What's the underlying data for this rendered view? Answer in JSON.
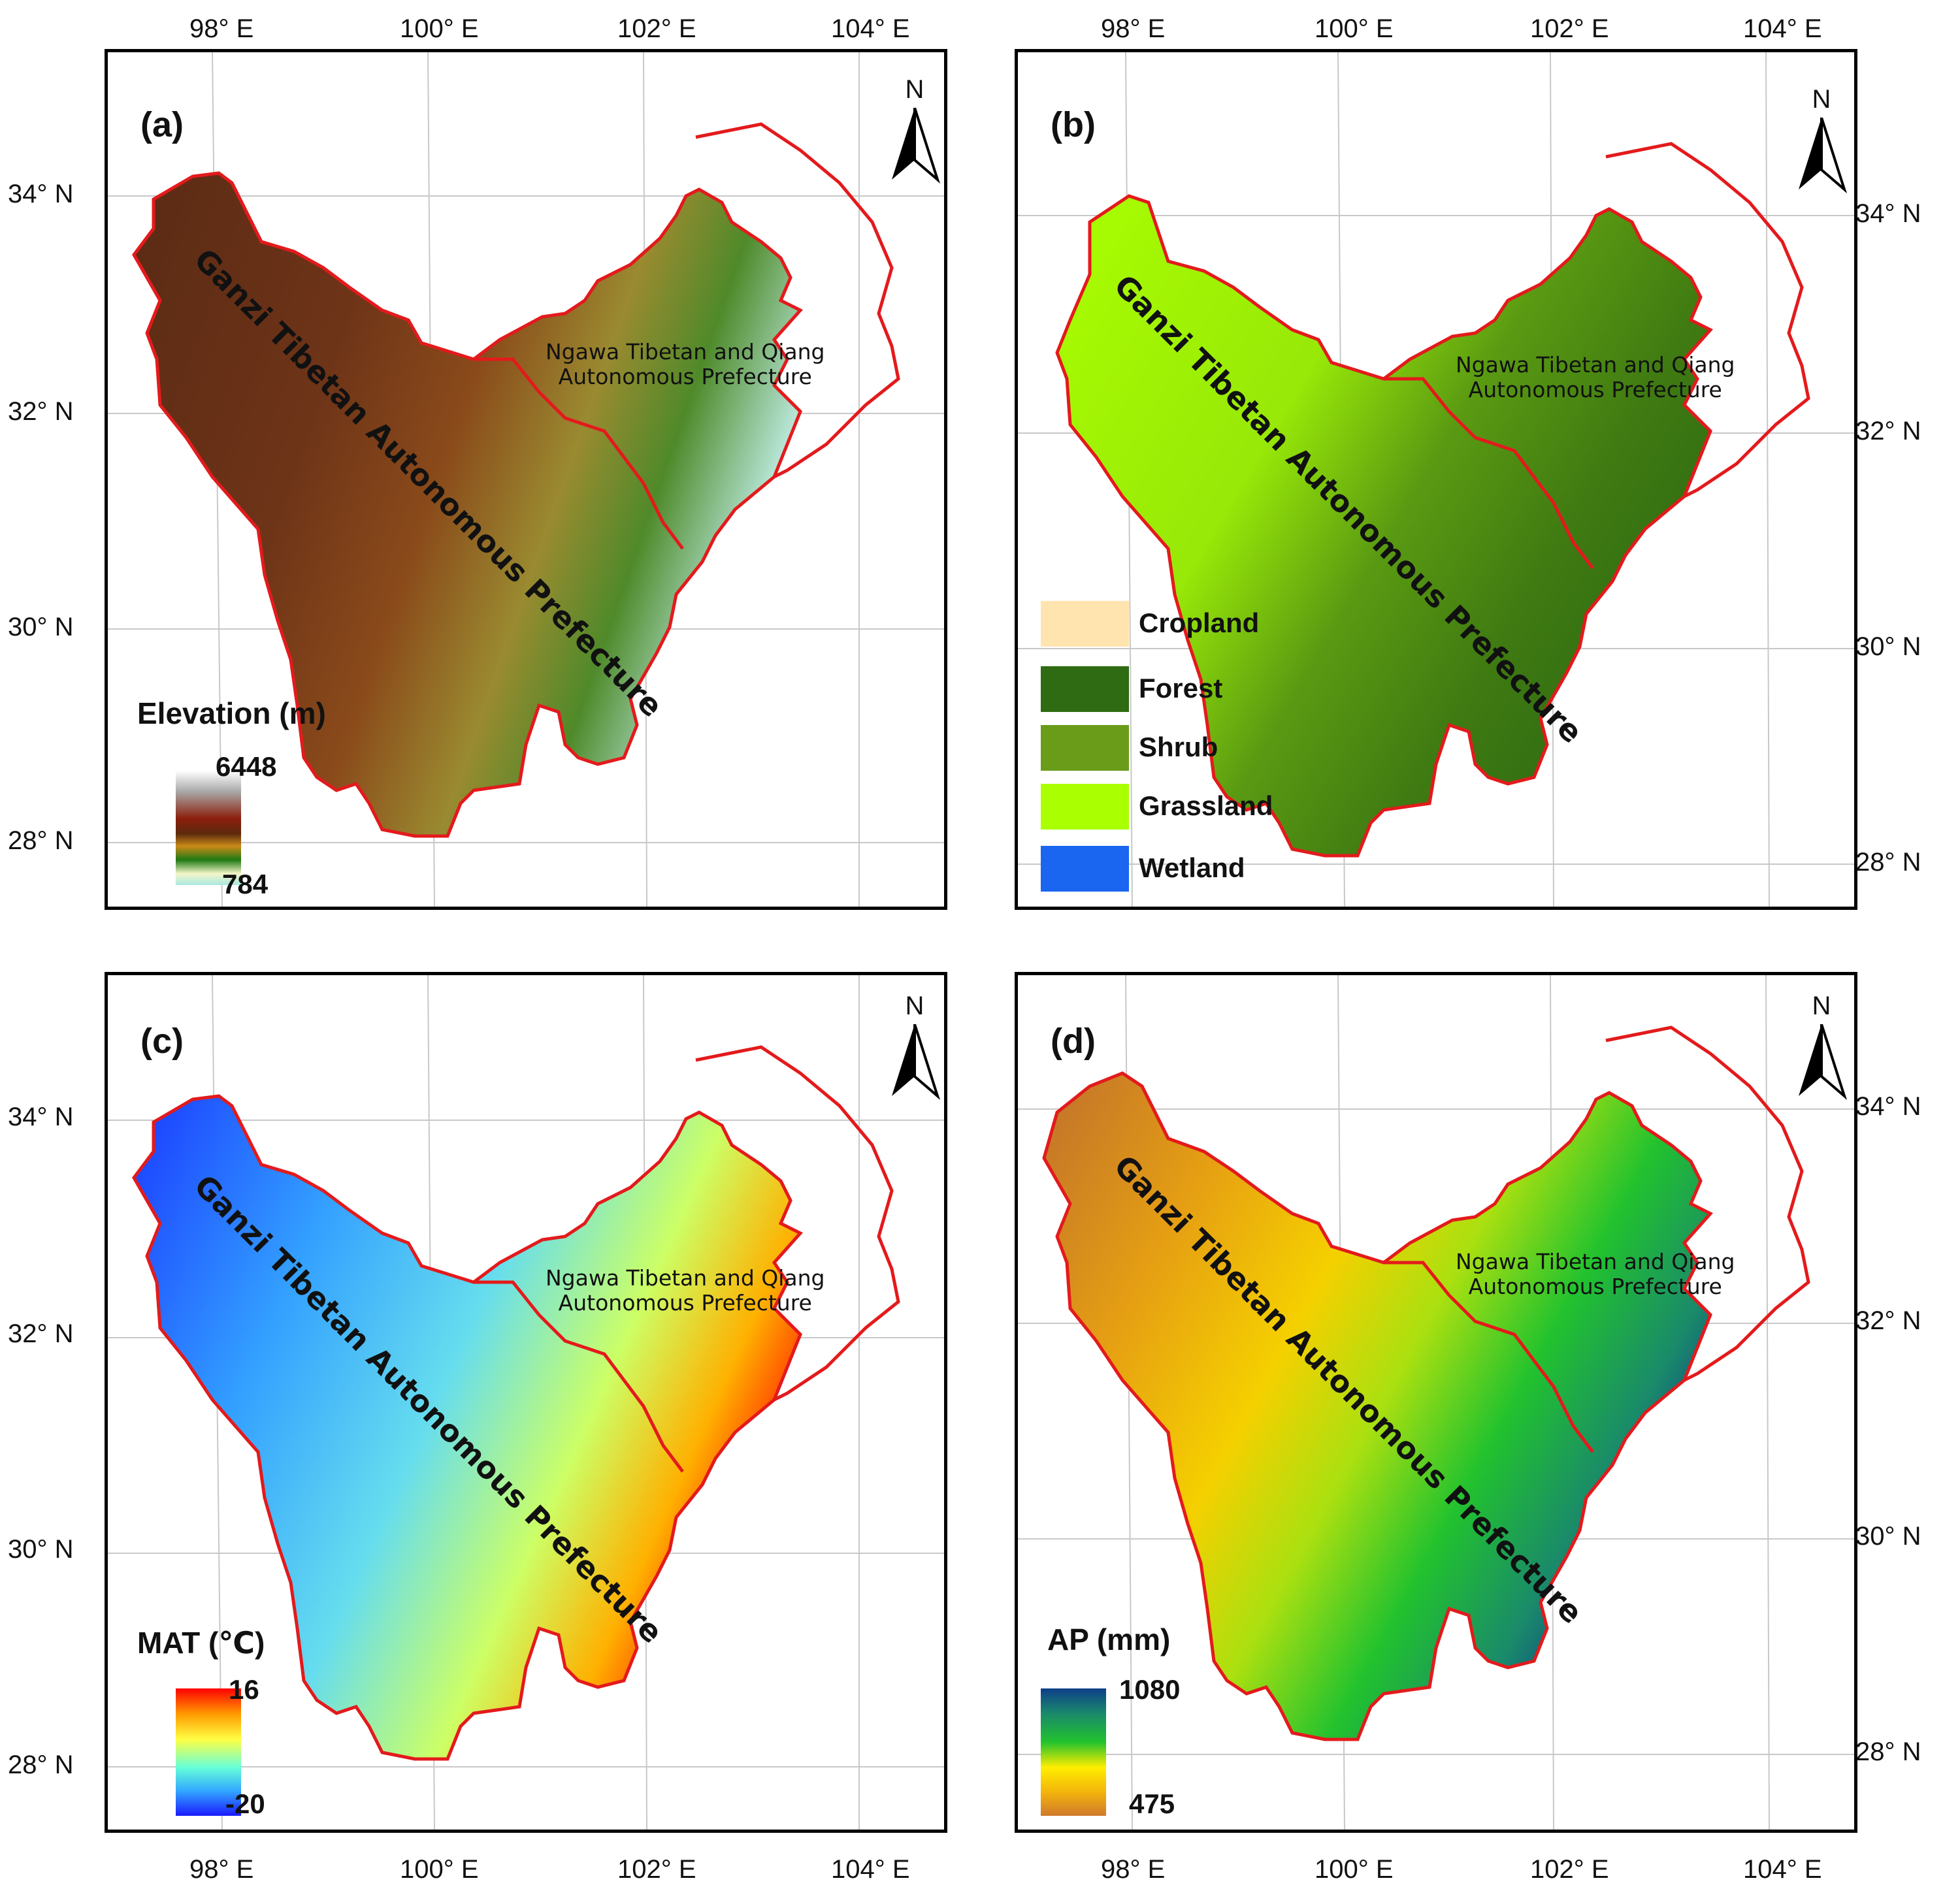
{
  "figure": {
    "lon_ticks": [
      "98° E",
      "100° E",
      "102° E",
      "104° E"
    ],
    "lat_ticks": [
      "34° N",
      "32° N",
      "30° N",
      "28° N"
    ],
    "north_label": "N",
    "region_ganzi": "Ganzi Tibetan Autonomous Prefecture",
    "region_ngawa_line1": "Ngawa Tibetan and Qiang",
    "region_ngawa_line2": "Autonomous Prefecture",
    "colors": {
      "border": "#e31a1c",
      "frame": "#000000",
      "grid": "#c8c8c8"
    }
  },
  "panels": {
    "a": {
      "label": "(a)",
      "legend_title": "Elevation (m)",
      "scale_max": "6448",
      "scale_min": "784",
      "colors": [
        "#ffffff",
        "#a9a9a9",
        "#8b1e0c",
        "#5c2a0e",
        "#c98a18",
        "#1e7a14",
        "#f5f5c8",
        "#a8e8e0"
      ]
    },
    "b": {
      "label": "(b)",
      "legend": [
        {
          "name": "Cropland",
          "color": "#ffe4b0"
        },
        {
          "name": "Forest",
          "color": "#2e6b12"
        },
        {
          "name": "Shrub",
          "color": "#6a9c1a"
        },
        {
          "name": "Grassland",
          "color": "#aaff00"
        },
        {
          "name": "Wetland",
          "color": "#1a66f0"
        }
      ]
    },
    "c": {
      "label": "(c)",
      "legend_title": "MAT (℃)",
      "scale_max": "16",
      "scale_min": "-20",
      "colors": [
        "#ff0000",
        "#ff9a00",
        "#ffff44",
        "#66ffd8",
        "#33aaff",
        "#1a1aff"
      ]
    },
    "d": {
      "label": "(d)",
      "legend_title": "AP (mm)",
      "scale_max": "1080",
      "scale_min": "475",
      "colors": [
        "#0e3f8a",
        "#1a8a6a",
        "#22c22e",
        "#ffee00",
        "#f3b20c",
        "#cf7a2c"
      ]
    }
  }
}
